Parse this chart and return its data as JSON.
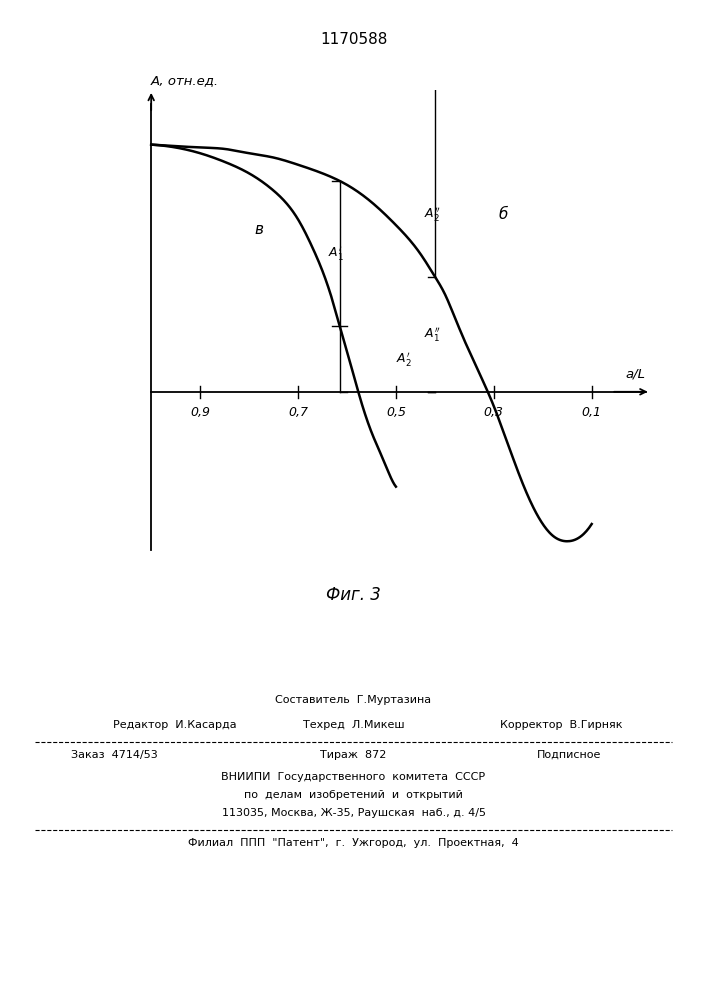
{
  "title": "1170588",
  "ylabel": "A, отн.ед.",
  "xlabel": "a/L",
  "x_ticks": [
    0.9,
    0.7,
    0.5,
    0.3,
    0.1
  ],
  "x_tick_labels": [
    "0,9",
    "0,7",
    "0,5",
    "0,3",
    "0,1"
  ],
  "fig_caption": "Фиг. 3",
  "curve_v_label": "в",
  "curve_d_label": "б",
  "curve_v_x": [
    1.0,
    0.95,
    0.9,
    0.85,
    0.8,
    0.75,
    0.7,
    0.67,
    0.65,
    0.63,
    0.61,
    0.59,
    0.57,
    0.55,
    0.53,
    0.52,
    0.51,
    0.5
  ],
  "curve_v_y": [
    0.86,
    0.85,
    0.83,
    0.8,
    0.76,
    0.7,
    0.6,
    0.5,
    0.42,
    0.32,
    0.2,
    0.08,
    -0.04,
    -0.14,
    -0.22,
    -0.26,
    -0.3,
    -0.33
  ],
  "curve_d_x": [
    1.0,
    0.95,
    0.9,
    0.85,
    0.8,
    0.75,
    0.7,
    0.65,
    0.6,
    0.55,
    0.5,
    0.45,
    0.42,
    0.4,
    0.38,
    0.35,
    0.3,
    0.25,
    0.22,
    0.2,
    0.18,
    0.15,
    0.12,
    0.1
  ],
  "curve_d_y": [
    0.86,
    0.855,
    0.85,
    0.845,
    0.83,
    0.815,
    0.79,
    0.76,
    0.72,
    0.66,
    0.58,
    0.48,
    0.4,
    0.34,
    0.26,
    0.14,
    -0.05,
    -0.28,
    -0.4,
    -0.46,
    -0.5,
    -0.52,
    -0.5,
    -0.46
  ],
  "vx1": 0.615,
  "vx2": 0.42,
  "footer_line1_center": "Составитель  Г.Муртазина",
  "footer_line2_left": "Редактор  И.Касарда",
  "footer_line2_center": "Техред  Л.Микеш",
  "footer_line2_right": "Корректор  В.Гирняк",
  "footer_line3_left": "Заказ  4714/53",
  "footer_line3_center": "Тираж  872",
  "footer_line3_right": "Подписное",
  "footer_line4": "ВНИИПИ  Государственного  комитета  СССР",
  "footer_line5": "по  делам  изобретений  и  открытий",
  "footer_line6": "113035, Москва, Ж-35, Раушская  наб., д. 4/5",
  "footer_line7": "Филиал  ППП  \"Патент\",  г.  Ужгород,  ул.  Проектная,  4"
}
